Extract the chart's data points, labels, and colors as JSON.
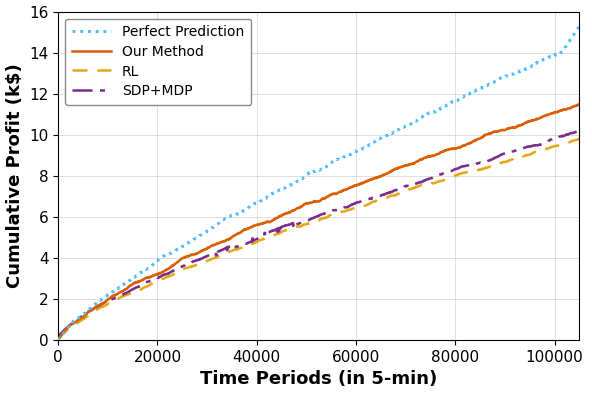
{
  "title": "",
  "xlabel": "Time Periods (in 5-min)",
  "ylabel": "Cumulative Profit (k$)",
  "xlim": [
    0,
    105000
  ],
  "ylim": [
    0,
    16
  ],
  "xticks": [
    0,
    20000,
    40000,
    60000,
    80000,
    100000
  ],
  "yticks": [
    0,
    2,
    4,
    6,
    8,
    10,
    12,
    14,
    16
  ],
  "legend_labels": [
    "Perfect Prediction",
    "Our Method",
    "RL",
    "SDP+MDP"
  ],
  "colors": {
    "perfect": "#4DBBFF",
    "our_method": "#D95F02",
    "rl": "#E6A817",
    "sdp_mdp": "#7B2D8B"
  },
  "final_vals": {
    "perfect": 15.3,
    "our_method": 11.5,
    "rl": 9.8,
    "sdp_mdp": 10.2
  },
  "n_points": 105000,
  "n_samples": 3000,
  "grid": true,
  "background_color": "#ffffff",
  "tick_fontsize": 11,
  "label_fontsize": 13,
  "legend_fontsize": 10,
  "linewidth": 1.8
}
